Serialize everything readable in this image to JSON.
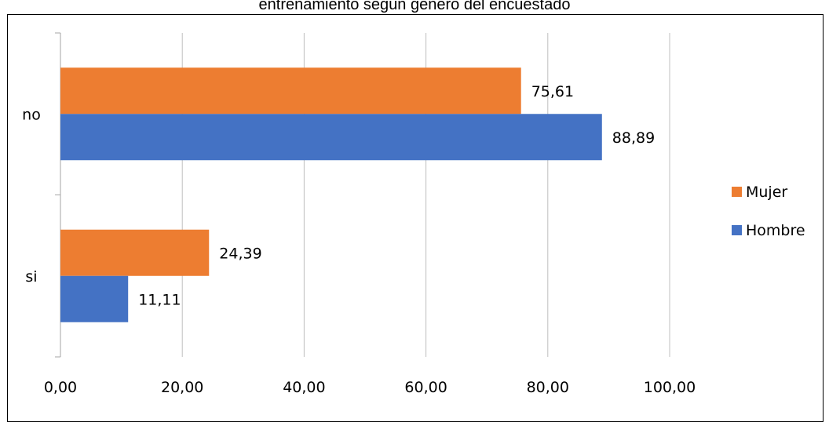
{
  "chart_data": {
    "type": "bar",
    "orientation": "horizontal",
    "title": "entrenamiento según género del encuestado",
    "categories": [
      "no",
      "si"
    ],
    "series": [
      {
        "name": "Mujer",
        "color": "#ED7D31",
        "values": [
          75.61,
          24.39
        ],
        "labels": [
          "75,61",
          "24,39"
        ]
      },
      {
        "name": "Hombre",
        "color": "#4472C4",
        "values": [
          88.89,
          11.11
        ],
        "labels": [
          "88,89",
          "11,11"
        ]
      }
    ],
    "xlim": [
      0,
      100
    ],
    "xticks": [
      0,
      20,
      40,
      60,
      80,
      100
    ],
    "xtick_labels": [
      "0,00",
      "20,00",
      "40,00",
      "60,00",
      "80,00",
      "100,00"
    ],
    "grid": true,
    "legend_position": "right"
  }
}
